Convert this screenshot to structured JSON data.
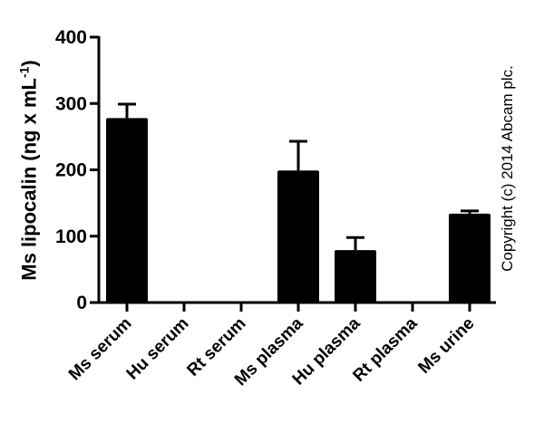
{
  "chart_data": {
    "type": "bar",
    "title": "",
    "xlabel": "",
    "ylabel": "Ms lipocalin (ng x mL",
    "ylabel_superscript": "-1",
    "ylabel_close": ")",
    "ylim": [
      0,
      400
    ],
    "yticks": [
      0,
      100,
      200,
      300,
      400
    ],
    "grid": false,
    "legend": null,
    "categories": [
      "Ms serum",
      "Hu serum",
      "Rt serum",
      "Ms plasma",
      "Hu plasma",
      "Rt plasma",
      "Ms urine"
    ],
    "values": [
      278,
      0,
      0,
      199,
      79,
      0,
      134
    ],
    "error_upper": [
      21,
      0,
      0,
      44,
      19,
      0,
      4
    ],
    "bar_color": "#000000"
  },
  "annotation": {
    "copyright": "Copyright (c) 2014 Abcam plc."
  }
}
